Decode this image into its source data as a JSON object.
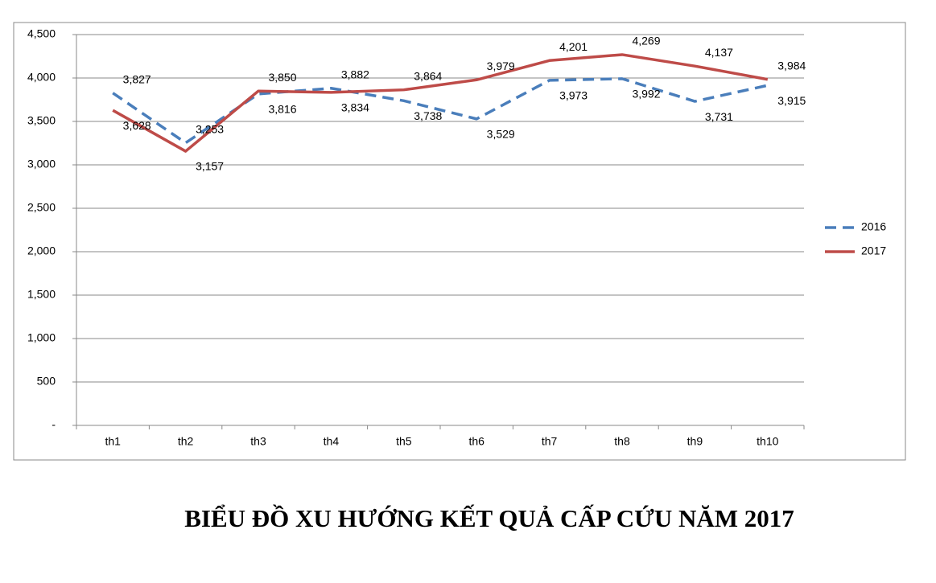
{
  "chart_data": {
    "type": "line",
    "title": "BIỂU ĐỒ XU HƯỚNG KẾT QUẢ CẤP CỨU NĂM 2017",
    "categories": [
      "th1",
      "th2",
      "th3",
      "th4",
      "th5",
      "th6",
      "th7",
      "th8",
      "th9",
      "th10"
    ],
    "series": [
      {
        "name": "2016",
        "color": "#4a7ebb",
        "dashed": true,
        "values": [
          3827,
          3253,
          3816,
          3882,
          3738,
          3529,
          3973,
          3992,
          3731,
          3915
        ],
        "value_labels": [
          "3,827",
          "3,253",
          "3,816",
          "3,882",
          "3,738",
          "3,529",
          "3,973",
          "3,992",
          "3,731",
          "3,915"
        ]
      },
      {
        "name": "2017",
        "color": "#be4b48",
        "dashed": false,
        "values": [
          3628,
          3157,
          3850,
          3834,
          3864,
          3979,
          4201,
          4269,
          4137,
          3984
        ],
        "value_labels": [
          "3,628",
          "3,157",
          "3,850",
          "3,834",
          "3,864",
          "3,979",
          "4,201",
          "4,269",
          "4,137",
          "3,984"
        ]
      }
    ],
    "ylim": [
      0,
      4500
    ],
    "yticks": [
      {
        "value": 0,
        "label": "-"
      },
      500,
      {
        "value": 1000,
        "label": "1,000"
      },
      {
        "value": 1500,
        "label": "1,500"
      },
      {
        "value": 2000,
        "label": "2,000"
      },
      {
        "value": 2500,
        "label": "2,500"
      },
      {
        "value": 3000,
        "label": "3,000"
      },
      {
        "value": 3500,
        "label": "3,500"
      },
      {
        "value": 4000,
        "label": "4,000"
      },
      {
        "value": 4500,
        "label": "4,500"
      }
    ],
    "grid": true,
    "legend": "right"
  }
}
